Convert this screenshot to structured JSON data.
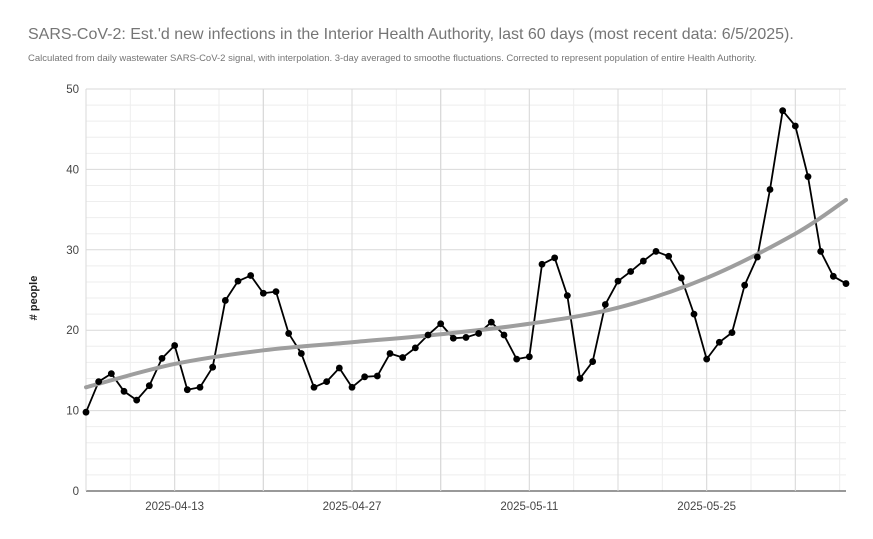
{
  "chart_data": {
    "type": "line",
    "title": "SARS-CoV-2: Est.'d new infections in the Interior Health Authority, last 60 days (most recent data: 6/5/2025).",
    "subtitle": "Calculated from daily wastewater SARS-CoV-2 signal, with interpolation. 3-day averaged to smoothe fluctuations. Corrected to represent population of entire Health Authority.",
    "xlabel": "",
    "ylabel": "# people",
    "ylim": [
      0,
      50
    ],
    "yticks": [
      0,
      10,
      20,
      30,
      40,
      50
    ],
    "xlim": [
      "2025-04-06",
      "2025-06-05"
    ],
    "xticks": [
      "2025-04-13",
      "2025-04-27",
      "2025-05-11",
      "2025-05-25"
    ],
    "grid": true,
    "legend": "none",
    "colors": {
      "series": "#000000",
      "trend": "#9e9e9e",
      "grid": "#d9d9d9",
      "minor_grid": "#eeeeee",
      "axis": "#333333"
    },
    "series": [
      {
        "style": "line-with-markers",
        "x": [
          "2025-04-06",
          "2025-04-07",
          "2025-04-08",
          "2025-04-09",
          "2025-04-10",
          "2025-04-11",
          "2025-04-12",
          "2025-04-13",
          "2025-04-14",
          "2025-04-15",
          "2025-04-16",
          "2025-04-17",
          "2025-04-18",
          "2025-04-19",
          "2025-04-20",
          "2025-04-21",
          "2025-04-22",
          "2025-04-23",
          "2025-04-24",
          "2025-04-25",
          "2025-04-26",
          "2025-04-27",
          "2025-04-28",
          "2025-04-29",
          "2025-04-30",
          "2025-05-01",
          "2025-05-02",
          "2025-05-03",
          "2025-05-04",
          "2025-05-05",
          "2025-05-06",
          "2025-05-07",
          "2025-05-08",
          "2025-05-09",
          "2025-05-10",
          "2025-05-11",
          "2025-05-12",
          "2025-05-13",
          "2025-05-14",
          "2025-05-15",
          "2025-05-16",
          "2025-05-17",
          "2025-05-18",
          "2025-05-19",
          "2025-05-20",
          "2025-05-21",
          "2025-05-22",
          "2025-05-23",
          "2025-05-24",
          "2025-05-25",
          "2025-05-26",
          "2025-05-27",
          "2025-05-28",
          "2025-05-29",
          "2025-05-30",
          "2025-05-31",
          "2025-06-01",
          "2025-06-02",
          "2025-06-03",
          "2025-06-04",
          "2025-06-05"
        ],
        "values": [
          9.8,
          13.6,
          14.6,
          12.4,
          11.3,
          13.1,
          16.5,
          18.1,
          12.6,
          12.9,
          15.4,
          23.7,
          26.1,
          26.8,
          24.6,
          24.8,
          19.6,
          17.1,
          12.9,
          13.6,
          15.3,
          12.9,
          14.2,
          14.3,
          17.1,
          16.6,
          17.8,
          19.4,
          20.8,
          19.0,
          19.1,
          19.6,
          21.0,
          19.4,
          16.4,
          16.7,
          28.2,
          29.0,
          24.3,
          14.0,
          16.1,
          23.2,
          26.1,
          27.3,
          28.6,
          29.8,
          29.2,
          26.5,
          22.0,
          16.4,
          18.5,
          19.7,
          25.6,
          29.1,
          37.5,
          47.3,
          45.4,
          39.1,
          29.8,
          26.7,
          25.8
        ]
      },
      {
        "style": "trendline",
        "x": [
          "2025-04-06",
          "2025-04-13",
          "2025-04-20",
          "2025-04-27",
          "2025-05-04",
          "2025-05-11",
          "2025-05-18",
          "2025-05-25",
          "2025-06-01",
          "2025-06-05"
        ],
        "values": [
          12.9,
          15.8,
          17.5,
          18.5,
          19.5,
          20.8,
          22.8,
          26.5,
          32.0,
          36.2
        ]
      }
    ]
  }
}
